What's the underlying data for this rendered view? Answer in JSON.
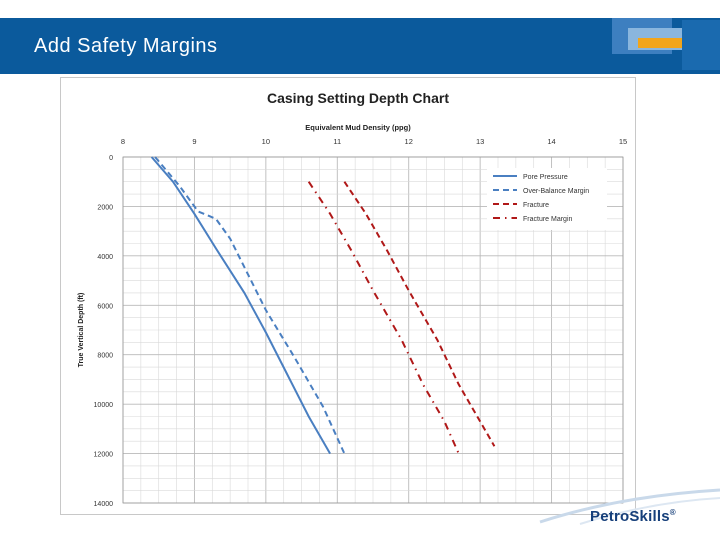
{
  "slide": {
    "title": "Add Safety Margins"
  },
  "brand": {
    "logo_text": "PetroSkills",
    "trademark": "®"
  },
  "colors": {
    "header_blue": "#0b5a9c",
    "pore": "#4a7fc1",
    "over": "#4a7fc1",
    "fracture": "#b01818",
    "fracture_margin": "#b01818",
    "grid": "#c9c9c9"
  },
  "chart_data": {
    "type": "line",
    "title": "Casing Setting Depth Chart",
    "xlabel": "Equivalent Mud Density (ppg)",
    "ylabel": "True Vertical Depth (ft)",
    "x_axis_position": "top",
    "xlim": [
      8,
      15
    ],
    "ylim": [
      0,
      14000
    ],
    "y_inverted": true,
    "grid": true,
    "xticks": [
      "8",
      "9",
      "10",
      "11",
      "12",
      "13",
      "14",
      "15"
    ],
    "yticks": [
      "0",
      "2000",
      "4000",
      "6000",
      "8000",
      "10000",
      "12000",
      "14000"
    ],
    "legend_position": "top-right",
    "series": [
      {
        "name": "Pore Pressure",
        "style": "solid",
        "color": "#4a7fc1",
        "points": [
          [
            8.4,
            0
          ],
          [
            8.7,
            1000
          ],
          [
            9.0,
            2300
          ],
          [
            9.3,
            3700
          ],
          [
            9.7,
            5500
          ],
          [
            10.0,
            7100
          ],
          [
            10.3,
            8800
          ],
          [
            10.6,
            10500
          ],
          [
            10.9,
            12000
          ]
        ]
      },
      {
        "name": "Over-Balance Margin",
        "style": "dashed",
        "color": "#4a7fc1",
        "points": [
          [
            8.45,
            0
          ],
          [
            8.8,
            1200
          ],
          [
            9.05,
            2200
          ],
          [
            9.3,
            2500
          ],
          [
            9.5,
            3300
          ],
          [
            10.0,
            6200
          ],
          [
            10.4,
            8100
          ],
          [
            10.8,
            10100
          ],
          [
            11.1,
            12000
          ]
        ]
      },
      {
        "name": "Fracture",
        "style": "dashed",
        "color": "#b01818",
        "points": [
          [
            11.1,
            1000
          ],
          [
            11.4,
            2300
          ],
          [
            11.7,
            3800
          ],
          [
            12.0,
            5400
          ],
          [
            12.4,
            7400
          ],
          [
            12.7,
            9200
          ],
          [
            13.0,
            10700
          ],
          [
            13.2,
            11700
          ]
        ]
      },
      {
        "name": "Fracture Margin",
        "style": "dashdot",
        "color": "#b01818",
        "points": [
          [
            10.6,
            1000
          ],
          [
            10.9,
            2300
          ],
          [
            11.2,
            3800
          ],
          [
            11.5,
            5400
          ],
          [
            11.9,
            7400
          ],
          [
            12.2,
            9200
          ],
          [
            12.5,
            10700
          ],
          [
            12.7,
            12000
          ]
        ]
      }
    ]
  }
}
